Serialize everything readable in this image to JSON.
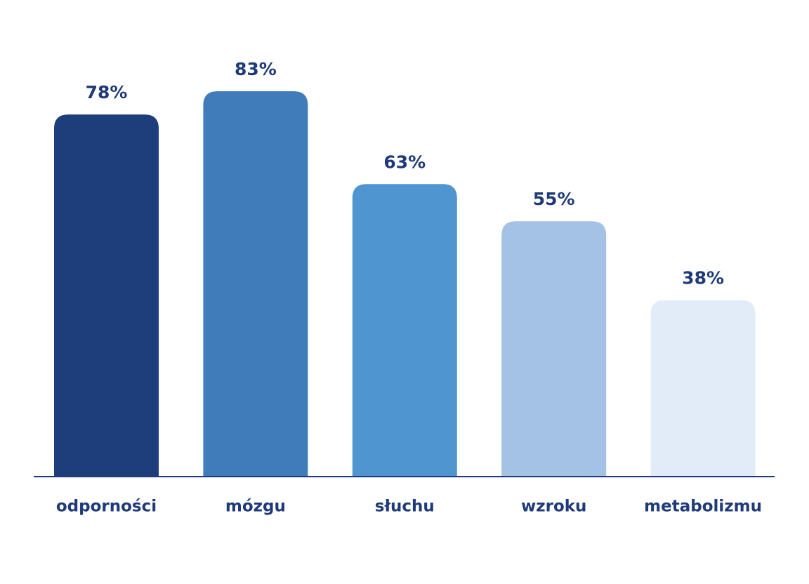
{
  "chart_data": {
    "type": "bar",
    "categories": [
      "odporności",
      "mózgu",
      "słuchu",
      "wzroku",
      "metabolizmu"
    ],
    "values": [
      78,
      83,
      63,
      55,
      38
    ],
    "value_labels": [
      "78%",
      "83%",
      "63%",
      "55%",
      "38%"
    ],
    "colors": [
      "#1e3d7b",
      "#407cba",
      "#4f96d0",
      "#a3c2e6",
      "#e2ecf8"
    ]
  }
}
